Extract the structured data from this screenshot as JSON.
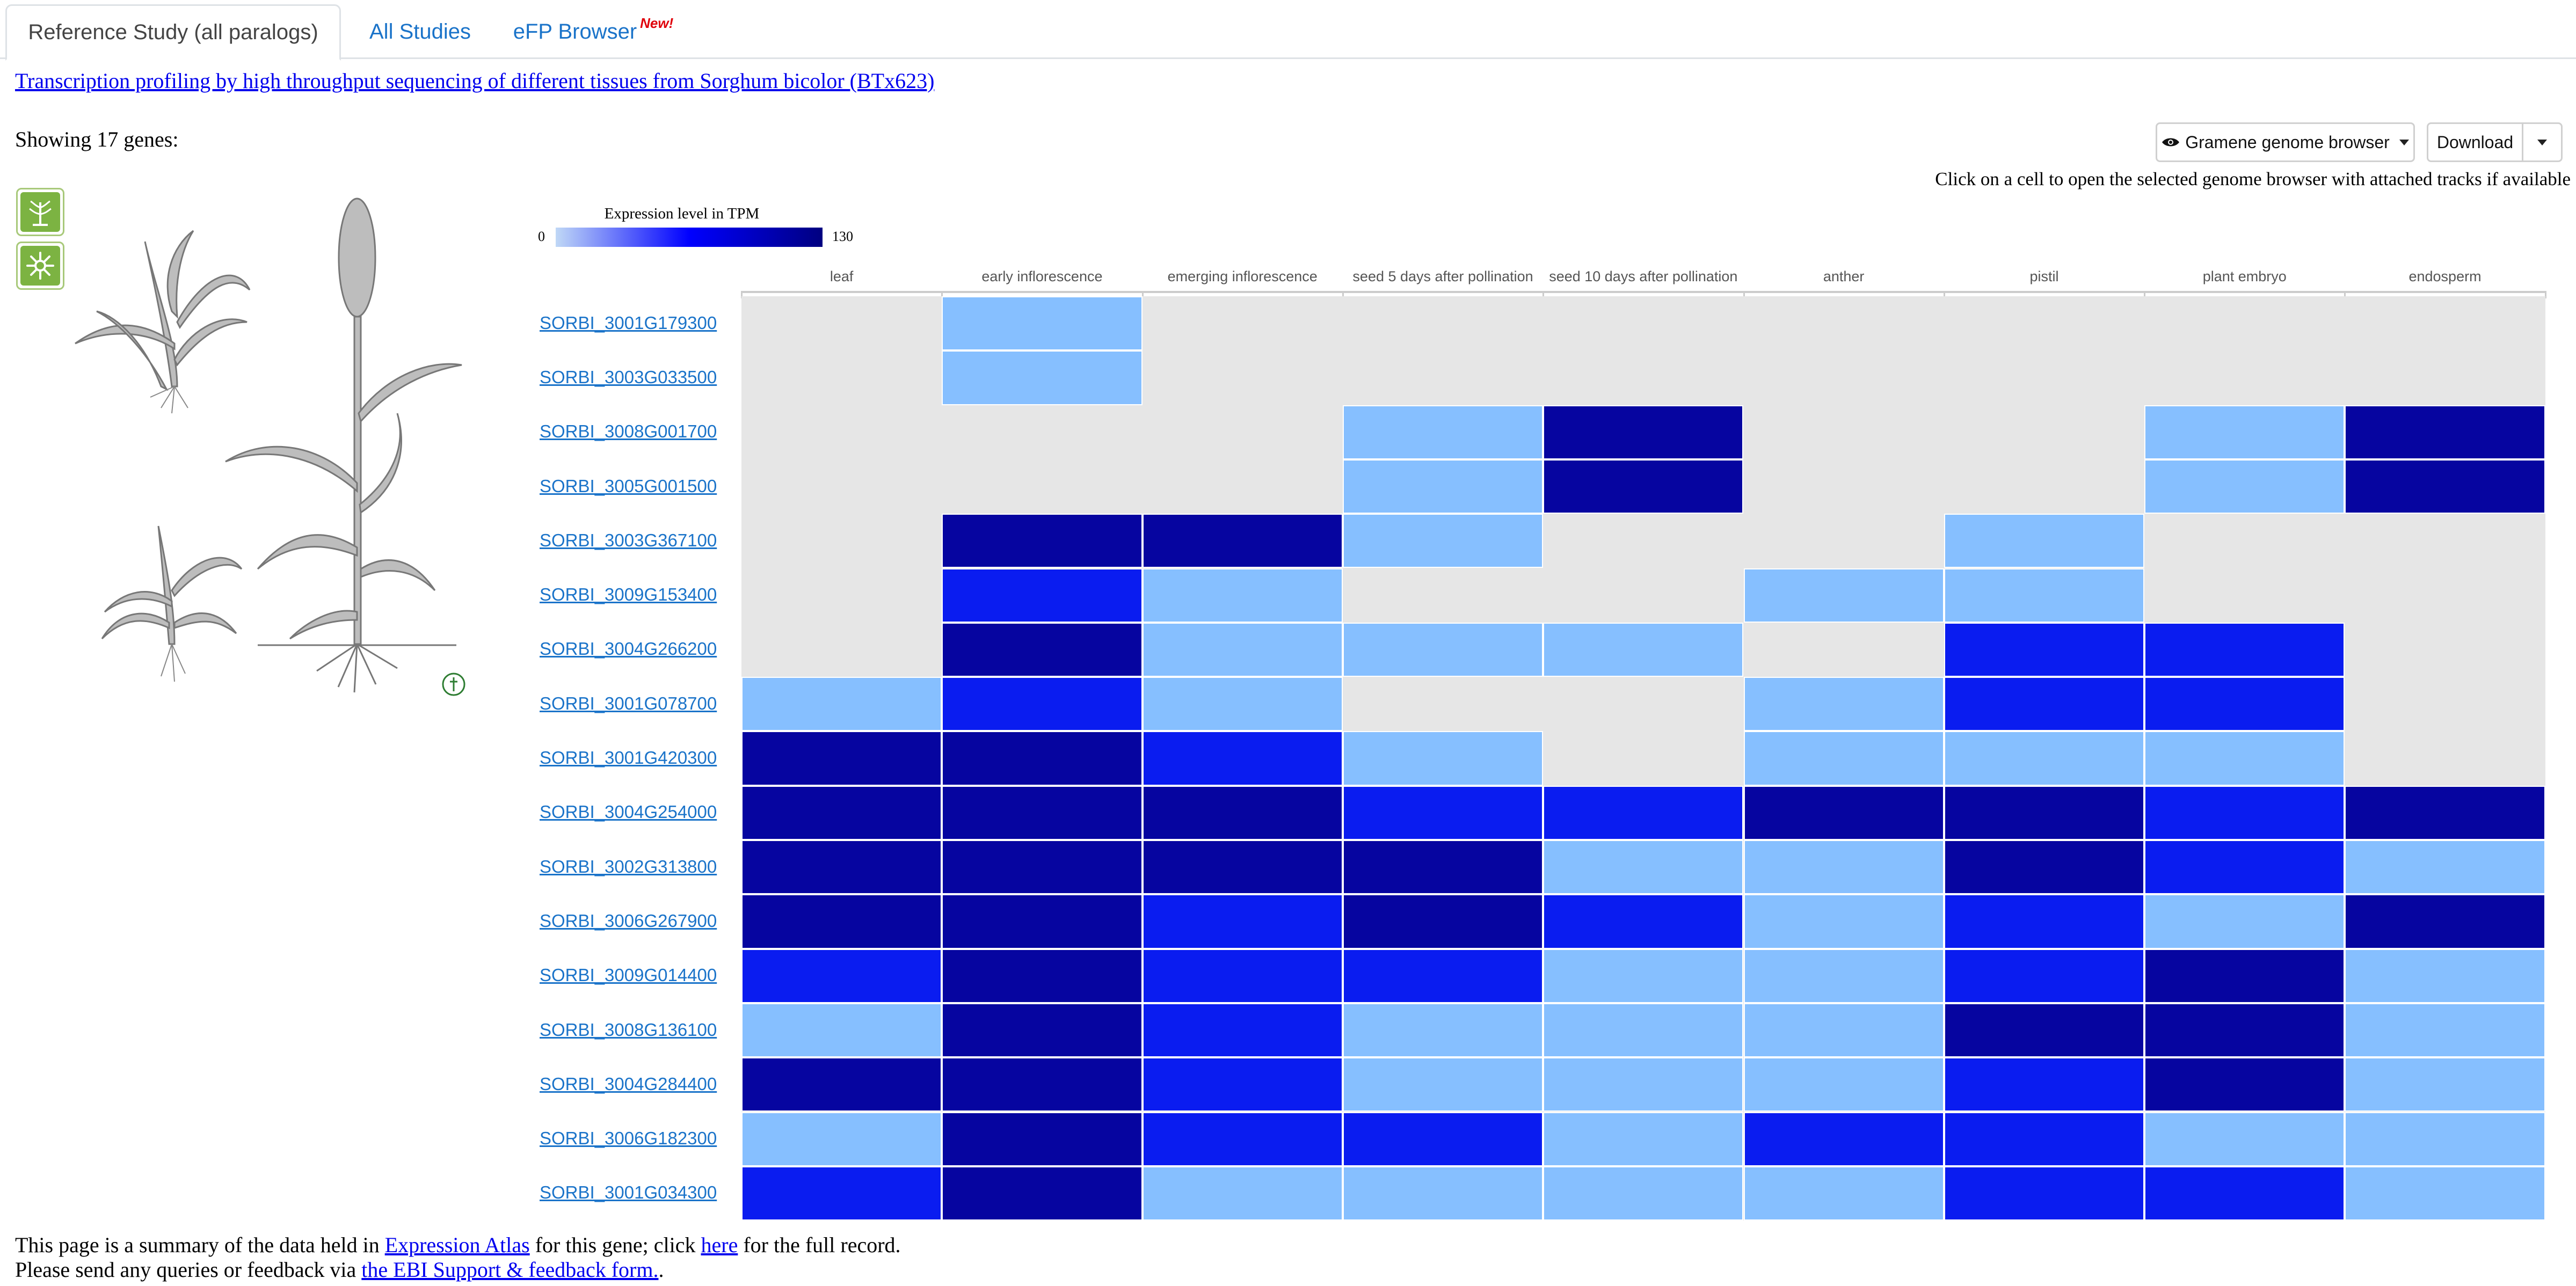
{
  "tabs": [
    {
      "label": "Reference Study (all paralogs)",
      "active": true
    },
    {
      "label": "All Studies",
      "active": false
    },
    {
      "label": "eFP Browser",
      "badge": "New!",
      "active": false
    }
  ],
  "study_link": "Transcription profiling by high throughput sequencing of different tissues from Sorghum bicolor (BTx623)",
  "showing_text": "Showing 17 genes:",
  "toolbar": {
    "genome_browser_label": "Gramene genome browser",
    "download_label": "Download",
    "hint": "Click on a cell to open the selected genome browser with attached tracks if available"
  },
  "legend": {
    "title": "Expression level in TPM",
    "min": "0",
    "max": "130"
  },
  "colors": {
    "na": "#e6e6e6",
    "low": "#86bfff",
    "mid": "#0a1cf0",
    "high": "#0605a0",
    "link": "#1a73c9"
  },
  "chart_data": {
    "type": "heatmap",
    "columns": [
      "leaf",
      "early inflorescence",
      "emerging inflorescence",
      "seed 5 days after pollination",
      "seed 10 days after pollination",
      "anther",
      "pistil",
      "plant embryo",
      "endosperm"
    ],
    "rows": [
      {
        "gene": "SORBI_3001G179300",
        "levels": [
          0,
          1,
          0,
          0,
          0,
          0,
          0,
          0,
          0
        ]
      },
      {
        "gene": "SORBI_3003G033500",
        "levels": [
          0,
          1,
          0,
          0,
          0,
          0,
          0,
          0,
          0
        ]
      },
      {
        "gene": "SORBI_3008G001700",
        "levels": [
          0,
          0,
          0,
          1,
          3,
          0,
          0,
          1,
          3
        ]
      },
      {
        "gene": "SORBI_3005G001500",
        "levels": [
          0,
          0,
          0,
          1,
          3,
          0,
          0,
          1,
          3
        ]
      },
      {
        "gene": "SORBI_3003G367100",
        "levels": [
          0,
          3,
          3,
          1,
          0,
          0,
          1,
          0,
          0
        ]
      },
      {
        "gene": "SORBI_3009G153400",
        "levels": [
          0,
          2,
          1,
          0,
          0,
          1,
          1,
          0,
          0
        ]
      },
      {
        "gene": "SORBI_3004G266200",
        "levels": [
          0,
          3,
          1,
          1,
          1,
          0,
          2,
          2,
          0
        ]
      },
      {
        "gene": "SORBI_3001G078700",
        "levels": [
          1,
          2,
          1,
          0,
          0,
          1,
          2,
          2,
          0
        ]
      },
      {
        "gene": "SORBI_3001G420300",
        "levels": [
          3,
          3,
          2,
          1,
          0,
          1,
          1,
          1,
          0
        ]
      },
      {
        "gene": "SORBI_3004G254000",
        "levels": [
          3,
          3,
          3,
          2,
          2,
          3,
          3,
          2,
          3
        ]
      },
      {
        "gene": "SORBI_3002G313800",
        "levels": [
          3,
          3,
          3,
          3,
          1,
          1,
          3,
          2,
          1
        ]
      },
      {
        "gene": "SORBI_3006G267900",
        "levels": [
          3,
          3,
          2,
          3,
          2,
          1,
          2,
          1,
          3
        ]
      },
      {
        "gene": "SORBI_3009G014400",
        "levels": [
          2,
          3,
          2,
          2,
          1,
          1,
          2,
          3,
          1
        ]
      },
      {
        "gene": "SORBI_3008G136100",
        "levels": [
          1,
          3,
          2,
          1,
          1,
          1,
          3,
          3,
          1
        ]
      },
      {
        "gene": "SORBI_3004G284400",
        "levels": [
          3,
          3,
          2,
          1,
          1,
          1,
          2,
          3,
          1
        ]
      },
      {
        "gene": "SORBI_3006G182300",
        "levels": [
          1,
          3,
          2,
          2,
          1,
          2,
          2,
          1,
          1
        ]
      },
      {
        "gene": "SORBI_3001G034300",
        "levels": [
          2,
          3,
          1,
          1,
          1,
          1,
          2,
          2,
          1
        ]
      }
    ]
  },
  "footer": {
    "line1_pre": "This page is a summary of the data held in ",
    "line1_link1": "Expression Atlas",
    "line1_mid": " for this gene; click ",
    "line1_link2": "here",
    "line1_post": " for the full record.",
    "line2_pre": "Please send any queries or feedback via ",
    "line2_link": "the EBI Support & feedback form.",
    "line2_post": "."
  }
}
